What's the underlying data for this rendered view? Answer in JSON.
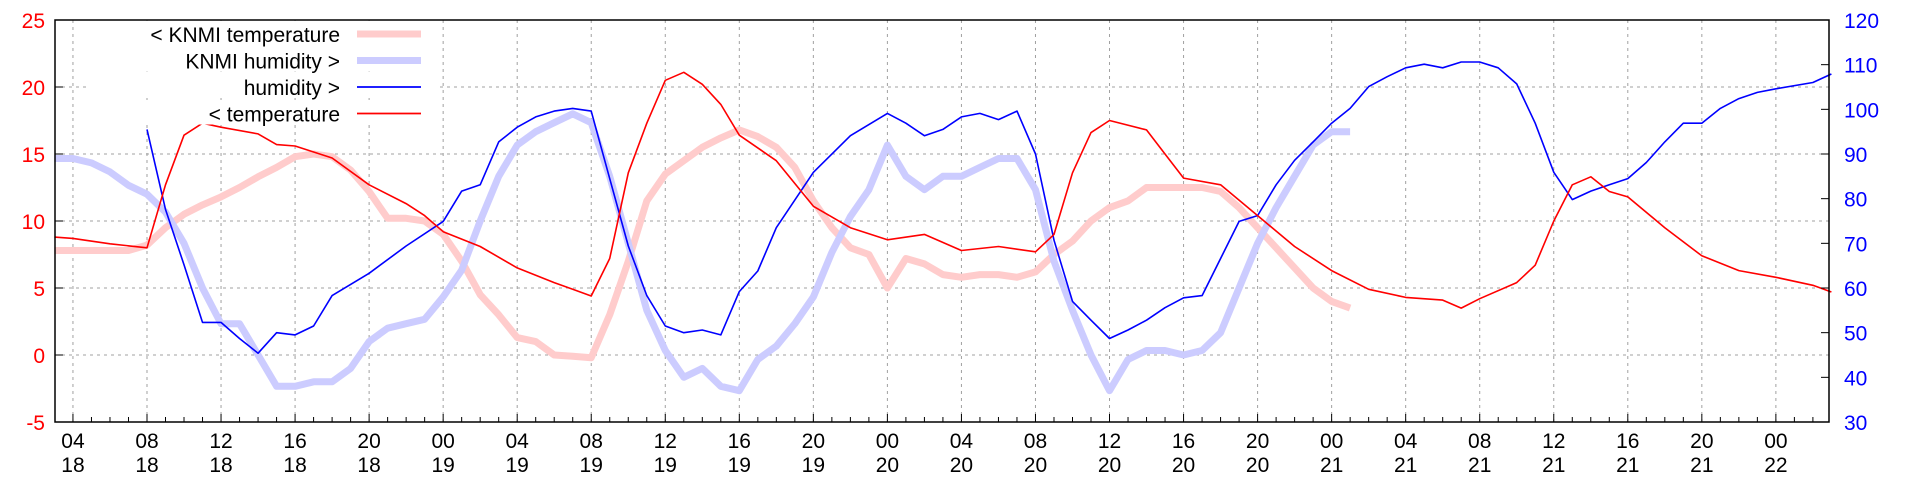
{
  "chart_data": {
    "type": "line",
    "title": "",
    "x_unit": "hours after 04:00 on day 18",
    "xlim": [
      -0.97,
      94.87
    ],
    "ylim_left": [
      -5,
      25
    ],
    "ylim_right": [
      30,
      120
    ],
    "grid": true,
    "legend_position": "top-left",
    "left_ticks": [
      "25",
      "20",
      "15",
      "10",
      "5",
      "0",
      "-5"
    ],
    "left_tick_values": [
      25,
      20,
      15,
      10,
      5,
      0,
      -5
    ],
    "right_ticks": [
      "120",
      "110",
      "100",
      "90",
      "80",
      "70",
      "60",
      "50",
      "40",
      "30"
    ],
    "right_tick_values": [
      120,
      110,
      100,
      90,
      80,
      70,
      60,
      50,
      40,
      30
    ],
    "x_ticks": [
      {
        "h": 0,
        "time": "04",
        "day": "18"
      },
      {
        "h": 4,
        "time": "08",
        "day": "18"
      },
      {
        "h": 8,
        "time": "12",
        "day": "18"
      },
      {
        "h": 12,
        "time": "16",
        "day": "18"
      },
      {
        "h": 16,
        "time": "20",
        "day": "18"
      },
      {
        "h": 20,
        "time": "00",
        "day": "19"
      },
      {
        "h": 24,
        "time": "04",
        "day": "19"
      },
      {
        "h": 28,
        "time": "08",
        "day": "19"
      },
      {
        "h": 32,
        "time": "12",
        "day": "19"
      },
      {
        "h": 36,
        "time": "16",
        "day": "19"
      },
      {
        "h": 40,
        "time": "20",
        "day": "19"
      },
      {
        "h": 44,
        "time": "00",
        "day": "20"
      },
      {
        "h": 48,
        "time": "04",
        "day": "20"
      },
      {
        "h": 52,
        "time": "08",
        "day": "20"
      },
      {
        "h": 56,
        "time": "12",
        "day": "20"
      },
      {
        "h": 60,
        "time": "16",
        "day": "20"
      },
      {
        "h": 64,
        "time": "20",
        "day": "20"
      },
      {
        "h": 68,
        "time": "00",
        "day": "21"
      },
      {
        "h": 72,
        "time": "04",
        "day": "21"
      },
      {
        "h": 76,
        "time": "08",
        "day": "21"
      },
      {
        "h": 80,
        "time": "12",
        "day": "21"
      },
      {
        "h": 84,
        "time": "16",
        "day": "21"
      },
      {
        "h": 88,
        "time": "20",
        "day": "21"
      },
      {
        "h": 92,
        "time": "00",
        "day": "22"
      }
    ],
    "series": [
      {
        "name": "< KNMI temperature",
        "axis": "left",
        "color": "#ffcccc",
        "width": 7,
        "x": [
          -1,
          0,
          2,
          3,
          4,
          5,
          6,
          7,
          8,
          9,
          10,
          11,
          12,
          13,
          14,
          15,
          16,
          17,
          18,
          19,
          20,
          21,
          22,
          23,
          24,
          25,
          26,
          27,
          28,
          29,
          30,
          31,
          32,
          33,
          34,
          35,
          36,
          37,
          38,
          39,
          40,
          41,
          42,
          43,
          44,
          45,
          46,
          47,
          48,
          49,
          50,
          51,
          52,
          53,
          54,
          55,
          56,
          57,
          58,
          59,
          60,
          61,
          62,
          63,
          64,
          65,
          66,
          67,
          68,
          69
        ],
        "y": [
          7.8,
          7.8,
          7.8,
          7.8,
          8.2,
          9.5,
          10.5,
          11.2,
          11.8,
          12.5,
          13.3,
          14,
          14.8,
          15,
          14.8,
          13.8,
          12.2,
          10.2,
          10.2,
          10,
          9,
          7,
          4.5,
          3,
          1.3,
          1,
          0,
          -0.1,
          -0.2,
          3,
          7,
          11.5,
          13.5,
          14.5,
          15.5,
          16.2,
          16.8,
          16.3,
          15.5,
          14,
          11.5,
          9.5,
          8,
          7.5,
          5,
          7.2,
          6.8,
          6,
          5.8,
          6,
          6,
          5.8,
          6.2,
          7.5,
          8.5,
          10,
          11,
          11.5,
          12.5,
          12.5,
          12.5,
          12.5,
          12.2,
          11,
          9.5,
          8,
          6.5,
          5,
          4,
          3.5
        ]
      },
      {
        "name": "KNMI humidity >",
        "axis": "right",
        "color": "#ccccff",
        "width": 7,
        "x": [
          -1,
          0,
          1,
          2,
          3,
          4,
          5,
          6,
          7,
          8,
          9,
          10,
          11,
          12,
          13,
          14,
          15,
          16,
          17,
          18,
          19,
          20,
          21,
          22,
          23,
          24,
          25,
          26,
          27,
          28,
          29,
          30,
          31,
          32,
          33,
          34,
          35,
          36,
          37,
          38,
          39,
          40,
          41,
          42,
          43,
          44,
          45,
          46,
          47,
          48,
          49,
          50,
          51,
          52,
          53,
          54,
          55,
          56,
          57,
          58,
          59,
          60,
          61,
          62,
          63,
          64,
          65,
          66,
          67,
          68,
          69
        ],
        "y": [
          89,
          89,
          88,
          86,
          83,
          81,
          77,
          70,
          60,
          52,
          52,
          45,
          38,
          38,
          39,
          39,
          42,
          48,
          51,
          52,
          53,
          58,
          64,
          75,
          85,
          92,
          95,
          97,
          99,
          97,
          85,
          70,
          55,
          46,
          40,
          42,
          38,
          37,
          44,
          47,
          52,
          58,
          68,
          76,
          82,
          92,
          85,
          82,
          85,
          85,
          87,
          89,
          89,
          82,
          66,
          55,
          45,
          37,
          44,
          46,
          46,
          45,
          46,
          50,
          60,
          70,
          78,
          85,
          92,
          95,
          95
        ]
      },
      {
        "name": "humidity >",
        "axis": "right",
        "color": "#0000ff",
        "width": 1.6,
        "x": [
          4,
          5,
          6,
          7,
          8,
          9,
          10,
          11,
          12,
          13,
          14,
          16,
          18,
          20,
          21,
          22,
          23,
          24,
          25,
          26,
          27,
          28,
          29,
          30,
          31,
          32,
          33,
          34,
          35,
          36,
          37,
          38,
          40,
          42,
          44,
          45,
          46,
          47,
          48,
          49,
          50,
          51,
          52,
          53,
          54,
          55,
          56,
          57,
          58,
          59,
          60,
          61,
          62,
          63,
          64,
          65,
          66,
          67,
          68,
          69,
          70,
          71,
          72,
          73,
          74,
          75,
          76,
          77,
          78,
          79,
          80,
          81,
          82,
          83,
          84,
          85,
          86,
          87,
          88,
          89,
          90,
          91,
          92,
          94,
          95
        ],
        "y": [
          95.5,
          77.6,
          65.2,
          52.3,
          52.3,
          48.7,
          45.4,
          50,
          49.5,
          51.5,
          58.3,
          63.3,
          69.4,
          74.9,
          81.7,
          83.1,
          92.7,
          96,
          98.3,
          99.6,
          100.2,
          99.6,
          84.5,
          69.4,
          58.3,
          51.5,
          50,
          50.6,
          49.5,
          59.2,
          63.8,
          73.5,
          85.9,
          94.1,
          99.1,
          96.9,
          94.1,
          95.5,
          98.3,
          99.1,
          97.7,
          99.6,
          90,
          70.7,
          57,
          52.8,
          48.7,
          50.6,
          52.8,
          55.6,
          57.8,
          58.3,
          66.6,
          74.9,
          76.2,
          83.1,
          88.6,
          92.7,
          96.9,
          100.2,
          105.1,
          107.3,
          109.3,
          110.1,
          109.3,
          110.6,
          110.6,
          109.3,
          105.7,
          96.9,
          85.9,
          79.8,
          81.7,
          83.1,
          84.5,
          88.1,
          92.7,
          96.9,
          96.9,
          100.2,
          102.4,
          103.8,
          104.6,
          106,
          107.9
        ]
      },
      {
        "name": "< temperature",
        "axis": "left",
        "color": "#ff0000",
        "width": 1.6,
        "x": [
          -1,
          0,
          2,
          4,
          5,
          6,
          7,
          8,
          10,
          11,
          12,
          14,
          16,
          18,
          19,
          20,
          22,
          24,
          26,
          27,
          28,
          29,
          30,
          31,
          32,
          33,
          34,
          35,
          36,
          38,
          40,
          42,
          44,
          46,
          48,
          50,
          52,
          53,
          54,
          55,
          56,
          58,
          59,
          60,
          62,
          64,
          66,
          68,
          70,
          72,
          74,
          75,
          76,
          78,
          79,
          80,
          81,
          82,
          83,
          84,
          86,
          88,
          90,
          92,
          94,
          95
        ],
        "y": [
          8.8,
          8.7,
          8.3,
          8.0,
          12.7,
          16.4,
          17.3,
          17,
          16.5,
          15.7,
          15.6,
          14.7,
          12.7,
          11.3,
          10.4,
          9.2,
          8.1,
          6.5,
          5.4,
          4.9,
          4.4,
          7.2,
          13.6,
          17.3,
          20.5,
          21.1,
          20.2,
          18.7,
          16.4,
          14.5,
          11.1,
          9.5,
          8.6,
          9.0,
          7.8,
          8.1,
          7.7,
          9.0,
          13.6,
          16.6,
          17.5,
          16.8,
          15,
          13.2,
          12.7,
          10.4,
          8.1,
          6.3,
          4.9,
          4.3,
          4.1,
          3.5,
          4.2,
          5.4,
          6.7,
          10,
          12.7,
          13.3,
          12.2,
          11.8,
          9.5,
          7.4,
          6.3,
          5.8,
          5.2,
          4.7
        ]
      }
    ]
  },
  "colors": {
    "left_axis": "#ff0000",
    "right_axis": "#0000ff",
    "grid": "#a0a0a0"
  }
}
